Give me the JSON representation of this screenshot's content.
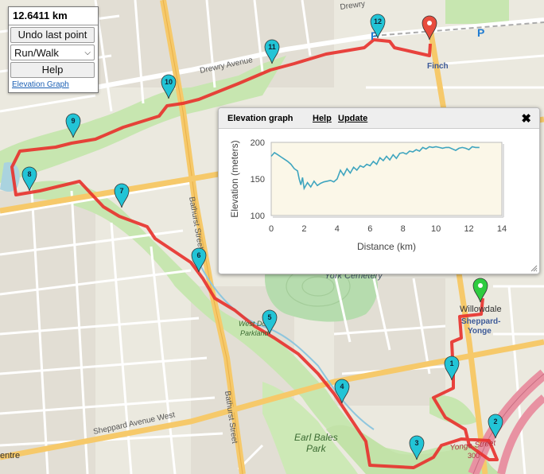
{
  "controls": {
    "distance": "12.6411 km",
    "undo_label": "Undo last point",
    "activity_value": "Run/Walk",
    "help_label": "Help",
    "elevation_link": "Elevation Graph"
  },
  "popup": {
    "title": "Elevation graph",
    "help_link": "Help",
    "update_link": "Update"
  },
  "map_labels": {
    "drewry_avenue": "Drewry Avenue",
    "drewry_top": "Drewry",
    "finch": "Finch",
    "willowdale": "Willowdale",
    "sheppard_yonge_1": "Sheppard-",
    "sheppard_yonge_2": "Yonge",
    "york_cemetery": "York Cemetery",
    "bathurst_street_1": "Bathurst Street",
    "bathurst_street_2": "Bathurst Street",
    "sheppard_avenue_west": "Sheppard Avenue West",
    "yonge_street": "Yonge Street",
    "route_number": "300",
    "earl_bales_1": "Earl Bales",
    "earl_bales_2": "Park",
    "west_don_1": "West Don",
    "west_don_2": "Parkland",
    "centre": "entre",
    "parking_1": "P",
    "parking_2": "P"
  },
  "markers": [
    {
      "label": "1",
      "type": "waypoint"
    },
    {
      "label": "2",
      "type": "waypoint"
    },
    {
      "label": "3",
      "type": "waypoint"
    },
    {
      "label": "4",
      "type": "waypoint"
    },
    {
      "label": "5",
      "type": "waypoint"
    },
    {
      "label": "6",
      "type": "waypoint"
    },
    {
      "label": "7",
      "type": "waypoint"
    },
    {
      "label": "8",
      "type": "waypoint"
    },
    {
      "label": "9",
      "type": "waypoint"
    },
    {
      "label": "10",
      "type": "waypoint"
    },
    {
      "label": "11",
      "type": "waypoint"
    },
    {
      "label": "12",
      "type": "waypoint"
    },
    {
      "label": "",
      "type": "start"
    },
    {
      "label": "",
      "type": "end"
    }
  ],
  "colors": {
    "route": "#e8302b",
    "waypoint": "#22c4d6",
    "start": "#2ecc40",
    "end": "#e84c3d",
    "park": "#c7e6b0",
    "cemetery": "#b6dcae",
    "major_road": "#f6c96a",
    "highway": "#e892a2",
    "chart_line": "#3fa5bf",
    "chart_bg": "#fbf7e8"
  },
  "icons": {
    "close": "close-icon",
    "resize": "resize-grip-icon",
    "dropdown": "chevron-down-icon"
  },
  "chart_data": {
    "type": "line",
    "title": "",
    "xlabel": "Distance (km)",
    "ylabel": "Elevation (meters)",
    "xlim": [
      0,
      14
    ],
    "ylim": [
      100,
      200
    ],
    "xticks": [
      0,
      2,
      4,
      6,
      8,
      10,
      12,
      14
    ],
    "yticks": [
      100,
      150,
      200
    ],
    "series": [
      {
        "x": [
          0,
          0.2,
          0.4,
          0.6,
          0.8,
          1.0,
          1.2,
          1.4,
          1.6,
          1.7,
          1.8,
          1.9,
          2.0,
          2.2,
          2.4,
          2.6,
          2.8,
          3.0,
          3.2,
          3.4,
          3.6,
          3.8,
          4.0,
          4.2,
          4.4,
          4.6,
          4.8,
          5.0,
          5.2,
          5.4,
          5.6,
          5.8,
          6.0,
          6.2,
          6.4,
          6.6,
          6.8,
          7.0,
          7.2,
          7.4,
          7.6,
          7.8,
          8.0,
          8.2,
          8.4,
          8.6,
          8.8,
          9.0,
          9.2,
          9.4,
          9.6,
          9.8,
          10.0,
          10.2,
          10.4,
          10.6,
          10.8,
          11.0,
          11.2,
          11.4,
          11.6,
          11.8,
          12.0,
          12.2,
          12.4,
          12.64
        ],
        "y": [
          181,
          186,
          183,
          180,
          177,
          174,
          170,
          164,
          161,
          150,
          142,
          152,
          137,
          145,
          139,
          147,
          141,
          144,
          146,
          147,
          148,
          146,
          150,
          162,
          155,
          164,
          158,
          166,
          162,
          168,
          166,
          170,
          168,
          174,
          170,
          179,
          175,
          181,
          176,
          183,
          178,
          185,
          186,
          184,
          188,
          187,
          190,
          188,
          193,
          191,
          194,
          193,
          194,
          193,
          192,
          193,
          193,
          191,
          189,
          192,
          193,
          192,
          190,
          194,
          193,
          193
        ]
      }
    ]
  }
}
